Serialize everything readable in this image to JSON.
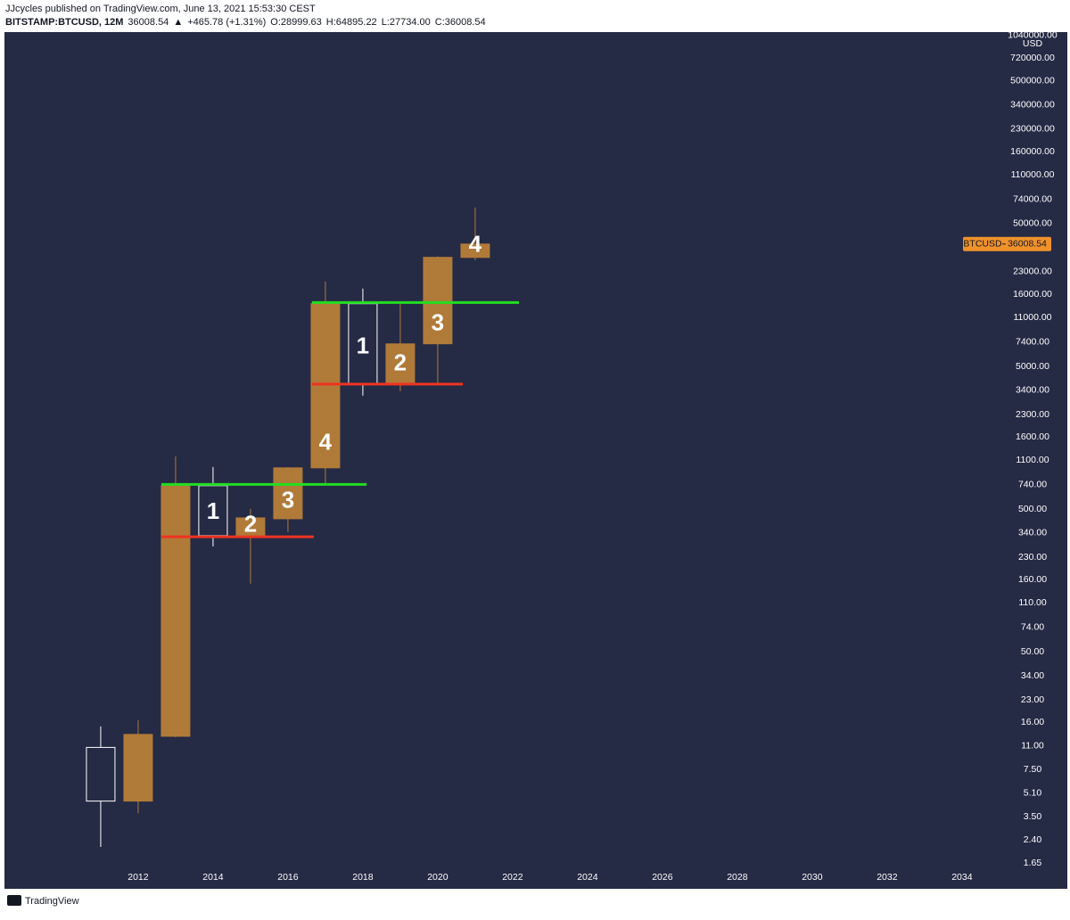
{
  "header": {
    "line1": "JJcycles published on TradingView.com, June 13, 2021 15:53:30 CEST",
    "symbol": "BITSTAMP:BTCUSD, 12M",
    "last": "36008.54",
    "arrow": "▲",
    "change": "+465.78 (+1.31%)",
    "o_label": "O:",
    "o": "28999.63",
    "h_label": "H:",
    "h": "64895.22",
    "l_label": "L:",
    "l": "27734.00",
    "c_label": "C:",
    "c": "36008.54"
  },
  "footer": {
    "brand": "TradingView"
  },
  "chart_data": {
    "type": "candlestick",
    "x": [
      2011,
      2012,
      2013,
      2014,
      2015,
      2016,
      2017,
      2018,
      2019,
      2020,
      2021
    ],
    "open": [
      10.7,
      4.5,
      12.8,
      730,
      320,
      428,
      973,
      13750,
      3760,
      7200,
      28999.63
    ],
    "high": [
      15,
      16.6,
      1173,
      987,
      502,
      987,
      19690,
      17550,
      13750,
      29500,
      64895.22
    ],
    "low": [
      2.15,
      3.7,
      12.6,
      274,
      150,
      345,
      745,
      3120,
      3350,
      3760,
      27734
    ],
    "close": [
      4.5,
      13.2,
      730,
      326,
      434,
      973,
      13750,
      3760,
      7190,
      29050,
      36008.54
    ],
    "up_color": "#b07a38",
    "down_color": "#ffffff",
    "background": "#252a45",
    "log_scale": true,
    "y_unit": "USD",
    "xlim": [
      2008.43,
      2034.86
    ],
    "xticks": [
      2012,
      2014,
      2016,
      2018,
      2020,
      2022,
      2024,
      2026,
      2028,
      2030,
      2032,
      2034
    ],
    "ylim": [
      1.5,
      1100000
    ],
    "yticks": [
      {
        "value": 1040000,
        "label": "1040000.00"
      },
      {
        "value": 720000,
        "label": "720000.00"
      },
      {
        "value": 500000,
        "label": "500000.00"
      },
      {
        "value": 340000,
        "label": "340000.00"
      },
      {
        "value": 230000,
        "label": "230000.00"
      },
      {
        "value": 160000,
        "label": "160000.00"
      },
      {
        "value": 110000,
        "label": "110000.00"
      },
      {
        "value": 74000,
        "label": "74000.00"
      },
      {
        "value": 50000,
        "label": "50000.00"
      },
      {
        "value": 23000,
        "label": "23000.00"
      },
      {
        "value": 16000,
        "label": "16000.00"
      },
      {
        "value": 11000,
        "label": "11000.00"
      },
      {
        "value": 7400,
        "label": "7400.00"
      },
      {
        "value": 5000,
        "label": "5000.00"
      },
      {
        "value": 3400,
        "label": "3400.00"
      },
      {
        "value": 2300,
        "label": "2300.00"
      },
      {
        "value": 1600,
        "label": "1600.00"
      },
      {
        "value": 1100,
        "label": "1100.00"
      },
      {
        "value": 740,
        "label": "740.00"
      },
      {
        "value": 500,
        "label": "500.00"
      },
      {
        "value": 340,
        "label": "340.00"
      },
      {
        "value": 230,
        "label": "230.00"
      },
      {
        "value": 160,
        "label": "160.00"
      },
      {
        "value": 110,
        "label": "110.00"
      },
      {
        "value": 74,
        "label": "74.00"
      },
      {
        "value": 50,
        "label": "50.00"
      },
      {
        "value": 34,
        "label": "34.00"
      },
      {
        "value": 23,
        "label": "23.00"
      },
      {
        "value": 16,
        "label": "16.00"
      },
      {
        "value": 11,
        "label": "11.00"
      },
      {
        "value": 7.5,
        "label": "7.50"
      },
      {
        "value": 5.1,
        "label": "5.10"
      },
      {
        "value": 3.5,
        "label": "3.50"
      },
      {
        "value": 2.4,
        "label": "2.40"
      },
      {
        "value": 1.65,
        "label": "1.65"
      }
    ],
    "last_price": {
      "name": "BTCUSD",
      "value": 36008.54,
      "label": "36008.54",
      "color": "#f0922b"
    },
    "lines": [
      {
        "color": "#22dd22",
        "y": 745,
        "x": [
          2012.62,
          2018.1
        ]
      },
      {
        "color": "#ee3322",
        "y": 320,
        "x": [
          2012.62,
          2016.69
        ]
      },
      {
        "color": "#22dd22",
        "y": 14000,
        "x": [
          2016.64,
          2022.17
        ]
      },
      {
        "color": "#ee3322",
        "y": 3760,
        "x": [
          2016.64,
          2020.67
        ]
      }
    ],
    "annotations": [
      {
        "text": "1",
        "x": 2014,
        "y": 473
      },
      {
        "text": "2",
        "x": 2015,
        "y": 382
      },
      {
        "text": "3",
        "x": 2016,
        "y": 563
      },
      {
        "text": "4",
        "x": 2017,
        "y": 1434
      },
      {
        "text": "1",
        "x": 2018,
        "y": 6790
      },
      {
        "text": "2",
        "x": 2019,
        "y": 5165
      },
      {
        "text": "3",
        "x": 2020,
        "y": 9870
      },
      {
        "text": "4",
        "x": 2021,
        "y": 35000
      }
    ]
  }
}
